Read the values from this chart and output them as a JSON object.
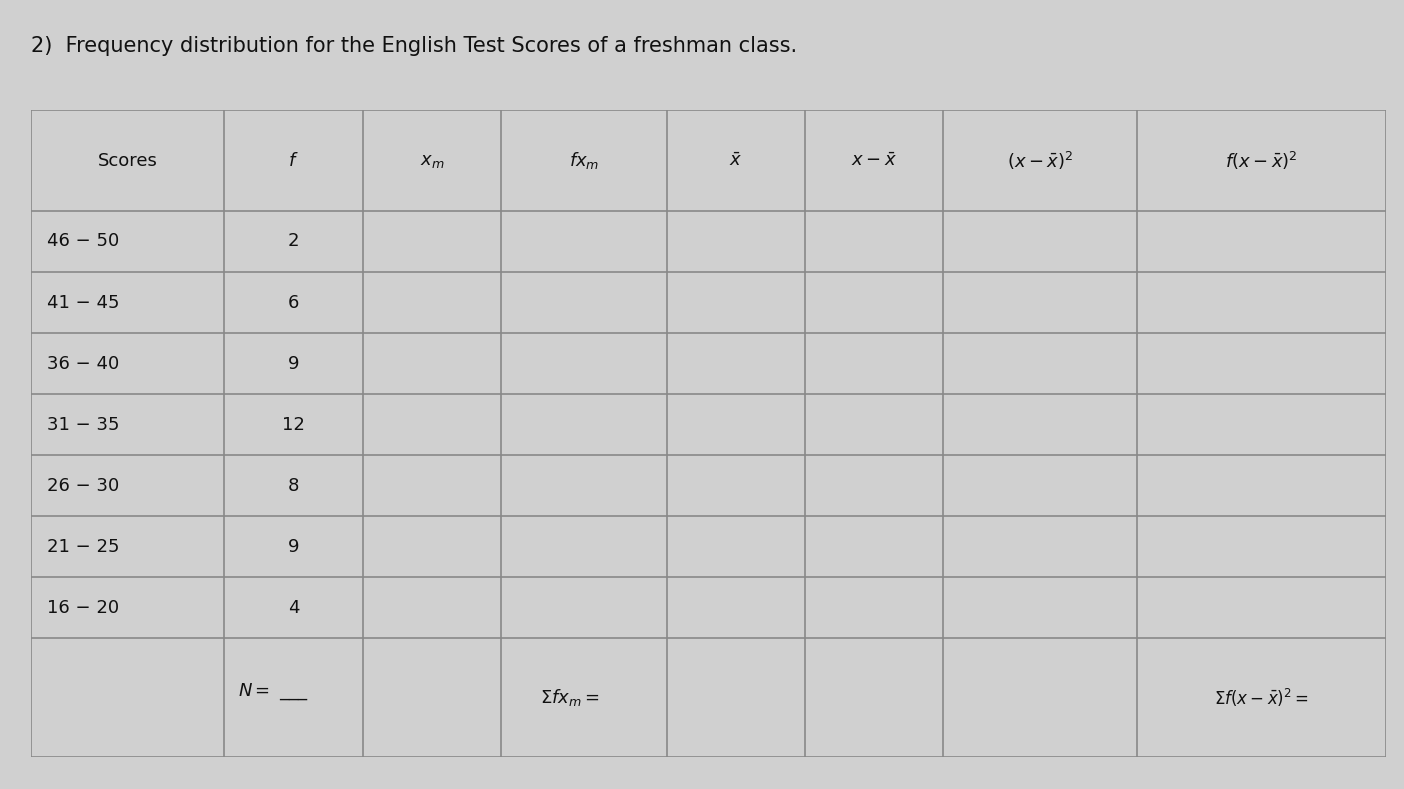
{
  "title": "2)  Frequency distribution for the English Test Scores of a freshman class.",
  "title_fontsize": 15,
  "bg_color": "#d0d0d0",
  "table_bg": "#e8e8e8",
  "header_texts": [
    "Scores",
    "$f$",
    "$x_m$",
    "$fx_m$",
    "$\\bar{x}$",
    "$x-\\bar{x}$",
    "$(x-\\bar{x})^2$",
    "$f(x-\\bar{x})^2$"
  ],
  "rows": [
    [
      "46 − 50",
      "2",
      "",
      "",
      "",
      "",
      "",
      ""
    ],
    [
      "41 − 45",
      "6",
      "",
      "",
      "",
      "",
      "",
      ""
    ],
    [
      "36 − 40",
      "9",
      "",
      "",
      "",
      "",
      "",
      ""
    ],
    [
      "31 − 35",
      "12",
      "",
      "",
      "",
      "",
      "",
      ""
    ],
    [
      "26 − 30",
      "8",
      "",
      "",
      "",
      "",
      "",
      ""
    ],
    [
      "21 − 25",
      "9",
      "",
      "",
      "",
      "",
      "",
      ""
    ],
    [
      "16 − 20",
      "4",
      "",
      "",
      "",
      "",
      "",
      ""
    ]
  ],
  "col_widths": [
    1.4,
    1.0,
    1.0,
    1.2,
    1.0,
    1.0,
    1.4,
    1.8
  ],
  "text_color": "#111111",
  "line_color": "#888888",
  "font_size": 13,
  "header_font_size": 13
}
